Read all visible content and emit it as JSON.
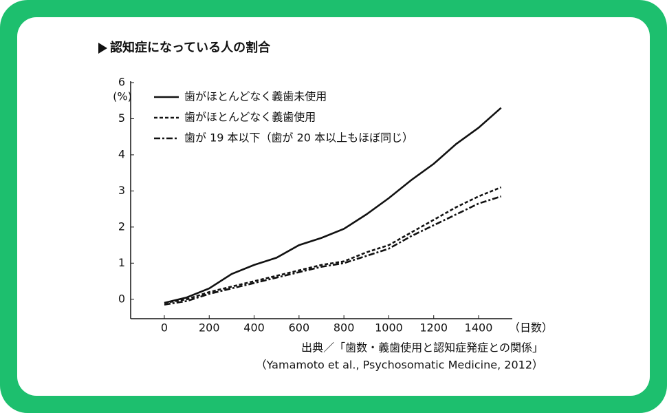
{
  "chart_data": {
    "type": "line",
    "title": "認知症になっている人の割合",
    "y_unit": "(%)",
    "x_unit": "（日数）",
    "source": [
      "出典／「歯数・義歯使用と認知症発症との関係」",
      "（Yamamoto et al., Psychosomatic Medicine, 2012）"
    ],
    "x": [
      0,
      100,
      200,
      300,
      400,
      500,
      600,
      700,
      800,
      900,
      1000,
      1100,
      1200,
      1300,
      1400,
      1500
    ],
    "series": [
      {
        "name": "歯がほとんどなく義歯未使用",
        "color": "#111111",
        "linestyle": "solid",
        "values": [
          -0.1,
          0.05,
          0.3,
          0.7,
          0.95,
          1.15,
          1.5,
          1.7,
          1.95,
          2.35,
          2.8,
          3.3,
          3.75,
          4.3,
          4.75,
          5.3
        ]
      },
      {
        "name": "歯がほとんどなく義歯使用",
        "color": "#111111",
        "linestyle": "dashed",
        "values": [
          -0.1,
          0,
          0.2,
          0.35,
          0.5,
          0.65,
          0.8,
          0.95,
          1.05,
          1.3,
          1.5,
          1.85,
          2.2,
          2.55,
          2.85,
          3.1
        ]
      },
      {
        "name": "歯が 19 本以下（歯が 20 本以上もほぼ同じ）",
        "color": "#111111",
        "linestyle": "dashdot",
        "values": [
          -0.15,
          -0.05,
          0.15,
          0.3,
          0.45,
          0.6,
          0.75,
          0.9,
          1.0,
          1.2,
          1.4,
          1.75,
          2.05,
          2.35,
          2.65,
          2.85
        ]
      }
    ],
    "xlim": [
      -150,
      1550
    ],
    "ylim": [
      -0.5,
      6
    ],
    "xticks": [
      0,
      200,
      400,
      600,
      800,
      1000,
      1200,
      1400
    ],
    "yticks": [
      0,
      1,
      2,
      3,
      4,
      5,
      6
    ],
    "frame_color": "#1dbf6e"
  }
}
